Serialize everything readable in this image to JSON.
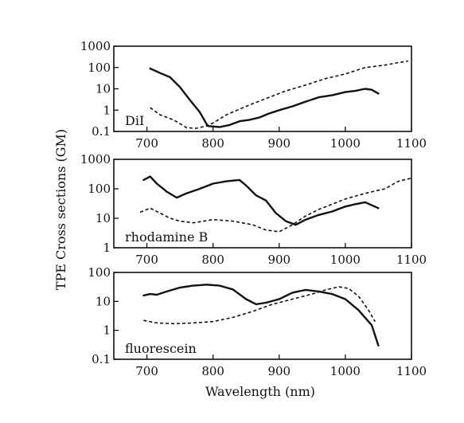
{
  "figure": {
    "ylabel": "TPE Cross sections (GM)",
    "xlabel": "Wavelength (nm)"
  },
  "chart_data": [
    {
      "type": "line",
      "annotation": "DiI",
      "xlim": [
        650,
        1100
      ],
      "ylim": [
        0.1,
        1000
      ],
      "yscale": "log",
      "xticks": [
        700,
        800,
        900,
        1000,
        1100
      ],
      "yticks": [
        0.1,
        1,
        10,
        100,
        1000
      ],
      "ytick_labels": [
        "0.1",
        "1",
        "10",
        "100",
        "1000"
      ],
      "series": [
        {
          "style": "solid",
          "x": [
            705,
            720,
            735,
            750,
            765,
            780,
            792,
            800,
            810,
            825,
            840,
            855,
            870,
            885,
            900,
            920,
            940,
            960,
            980,
            1000,
            1015,
            1030,
            1040,
            1050
          ],
          "y": [
            90,
            55,
            35,
            12,
            3,
            0.8,
            0.18,
            0.17,
            0.16,
            0.2,
            0.3,
            0.35,
            0.45,
            0.7,
            1.0,
            1.5,
            2.5,
            4,
            5,
            7,
            8,
            10,
            9,
            6
          ]
        },
        {
          "style": "dashed",
          "x": [
            705,
            720,
            740,
            760,
            775,
            790,
            800,
            820,
            850,
            880,
            910,
            940,
            970,
            1000,
            1030,
            1060,
            1080,
            1095
          ],
          "y": [
            1.3,
            0.6,
            0.35,
            0.15,
            0.14,
            0.18,
            0.25,
            0.6,
            1.5,
            3.5,
            8,
            15,
            30,
            50,
            100,
            130,
            170,
            200
          ]
        }
      ]
    },
    {
      "type": "line",
      "annotation": "rhodamine B",
      "xlim": [
        650,
        1100
      ],
      "ylim": [
        1,
        1000
      ],
      "yscale": "log",
      "xticks": [
        700,
        800,
        900,
        1000,
        1100
      ],
      "yticks": [
        1,
        10,
        100,
        1000
      ],
      "ytick_labels": [
        "1",
        "10",
        "100",
        "1000"
      ],
      "series": [
        {
          "style": "solid",
          "x": [
            695,
            705,
            715,
            730,
            745,
            760,
            780,
            800,
            820,
            840,
            850,
            865,
            880,
            895,
            910,
            925,
            940,
            960,
            980,
            1000,
            1015,
            1030,
            1050
          ],
          "y": [
            200,
            260,
            150,
            80,
            50,
            70,
            100,
            150,
            180,
            200,
            130,
            60,
            40,
            15,
            8,
            6,
            9,
            13,
            17,
            25,
            30,
            35,
            22
          ]
        },
        {
          "style": "dashed",
          "x": [
            690,
            705,
            720,
            735,
            750,
            770,
            800,
            830,
            860,
            880,
            900,
            920,
            940,
            960,
            980,
            1000,
            1030,
            1060,
            1080,
            1100
          ],
          "y": [
            16,
            22,
            15,
            10,
            8,
            7,
            9,
            8,
            6,
            4,
            3.5,
            6,
            12,
            20,
            30,
            45,
            70,
            100,
            180,
            230
          ]
        }
      ]
    },
    {
      "type": "line",
      "annotation": "fluorescein",
      "xlim": [
        650,
        1100
      ],
      "ylim": [
        0.1,
        100
      ],
      "yscale": "log",
      "xticks": [
        700,
        800,
        900,
        1000,
        1100
      ],
      "yticks": [
        0.1,
        1,
        10,
        100
      ],
      "ytick_labels": [
        "0.1",
        "1",
        "10",
        "100"
      ],
      "xtick_labels": [
        "700",
        "800",
        "900",
        "1000",
        "1100"
      ],
      "series": [
        {
          "style": "solid",
          "x": [
            695,
            705,
            715,
            730,
            750,
            770,
            790,
            810,
            830,
            850,
            865,
            880,
            900,
            920,
            940,
            960,
            980,
            1000,
            1020,
            1040,
            1050
          ],
          "y": [
            16,
            18,
            17,
            22,
            30,
            35,
            38,
            35,
            26,
            12,
            8,
            9,
            12,
            20,
            25,
            22,
            18,
            12,
            5,
            1.5,
            0.3
          ]
        },
        {
          "style": "dashed",
          "x": [
            695,
            715,
            740,
            770,
            800,
            830,
            860,
            890,
            920,
            950,
            970,
            990,
            1005,
            1020,
            1035,
            1045
          ],
          "y": [
            2.2,
            1.8,
            1.7,
            1.8,
            2.0,
            2.8,
            4.5,
            8,
            12,
            18,
            25,
            32,
            28,
            15,
            5,
            2
          ]
        }
      ]
    }
  ]
}
